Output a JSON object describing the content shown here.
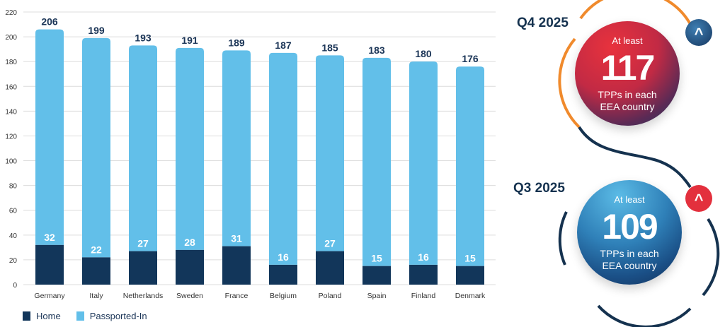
{
  "chart_data": {
    "type": "bar",
    "stacked": true,
    "categories": [
      "Germany",
      "Italy",
      "Netherlands",
      "Sweden",
      "France",
      "Belgium",
      "Poland",
      "Spain",
      "Finland",
      "Denmark"
    ],
    "series": [
      {
        "name": "Home",
        "values": [
          32,
          22,
          27,
          28,
          31,
          16,
          27,
          15,
          16,
          15
        ],
        "color": "#12365a"
      },
      {
        "name": "Passported-In",
        "values": [
          174,
          177,
          166,
          163,
          158,
          171,
          158,
          168,
          164,
          161
        ],
        "color": "#62bfe9"
      }
    ],
    "totals": [
      206,
      199,
      193,
      191,
      189,
      187,
      185,
      183,
      180,
      176
    ],
    "yticks": [
      0,
      20,
      40,
      60,
      80,
      100,
      120,
      140,
      160,
      180,
      200,
      220
    ],
    "ylim": [
      0,
      220
    ],
    "grid": true,
    "legend": "bottom-left",
    "title": "",
    "xlabel": "",
    "ylabel": ""
  },
  "cards": {
    "q4": {
      "label": "Q4 2025",
      "prefix": "At least",
      "value": "117",
      "suffix1": "TPPs in each",
      "suffix2": "EEA country"
    },
    "q3": {
      "label": "Q3 2025",
      "prefix": "At least",
      "value": "109",
      "suffix1": "TPPs in each",
      "suffix2": "EEA country"
    }
  },
  "badge_glyph": "^",
  "colors": {
    "navy": "#1b3557",
    "red": "#e3303d",
    "orange": "#f08a2c"
  }
}
